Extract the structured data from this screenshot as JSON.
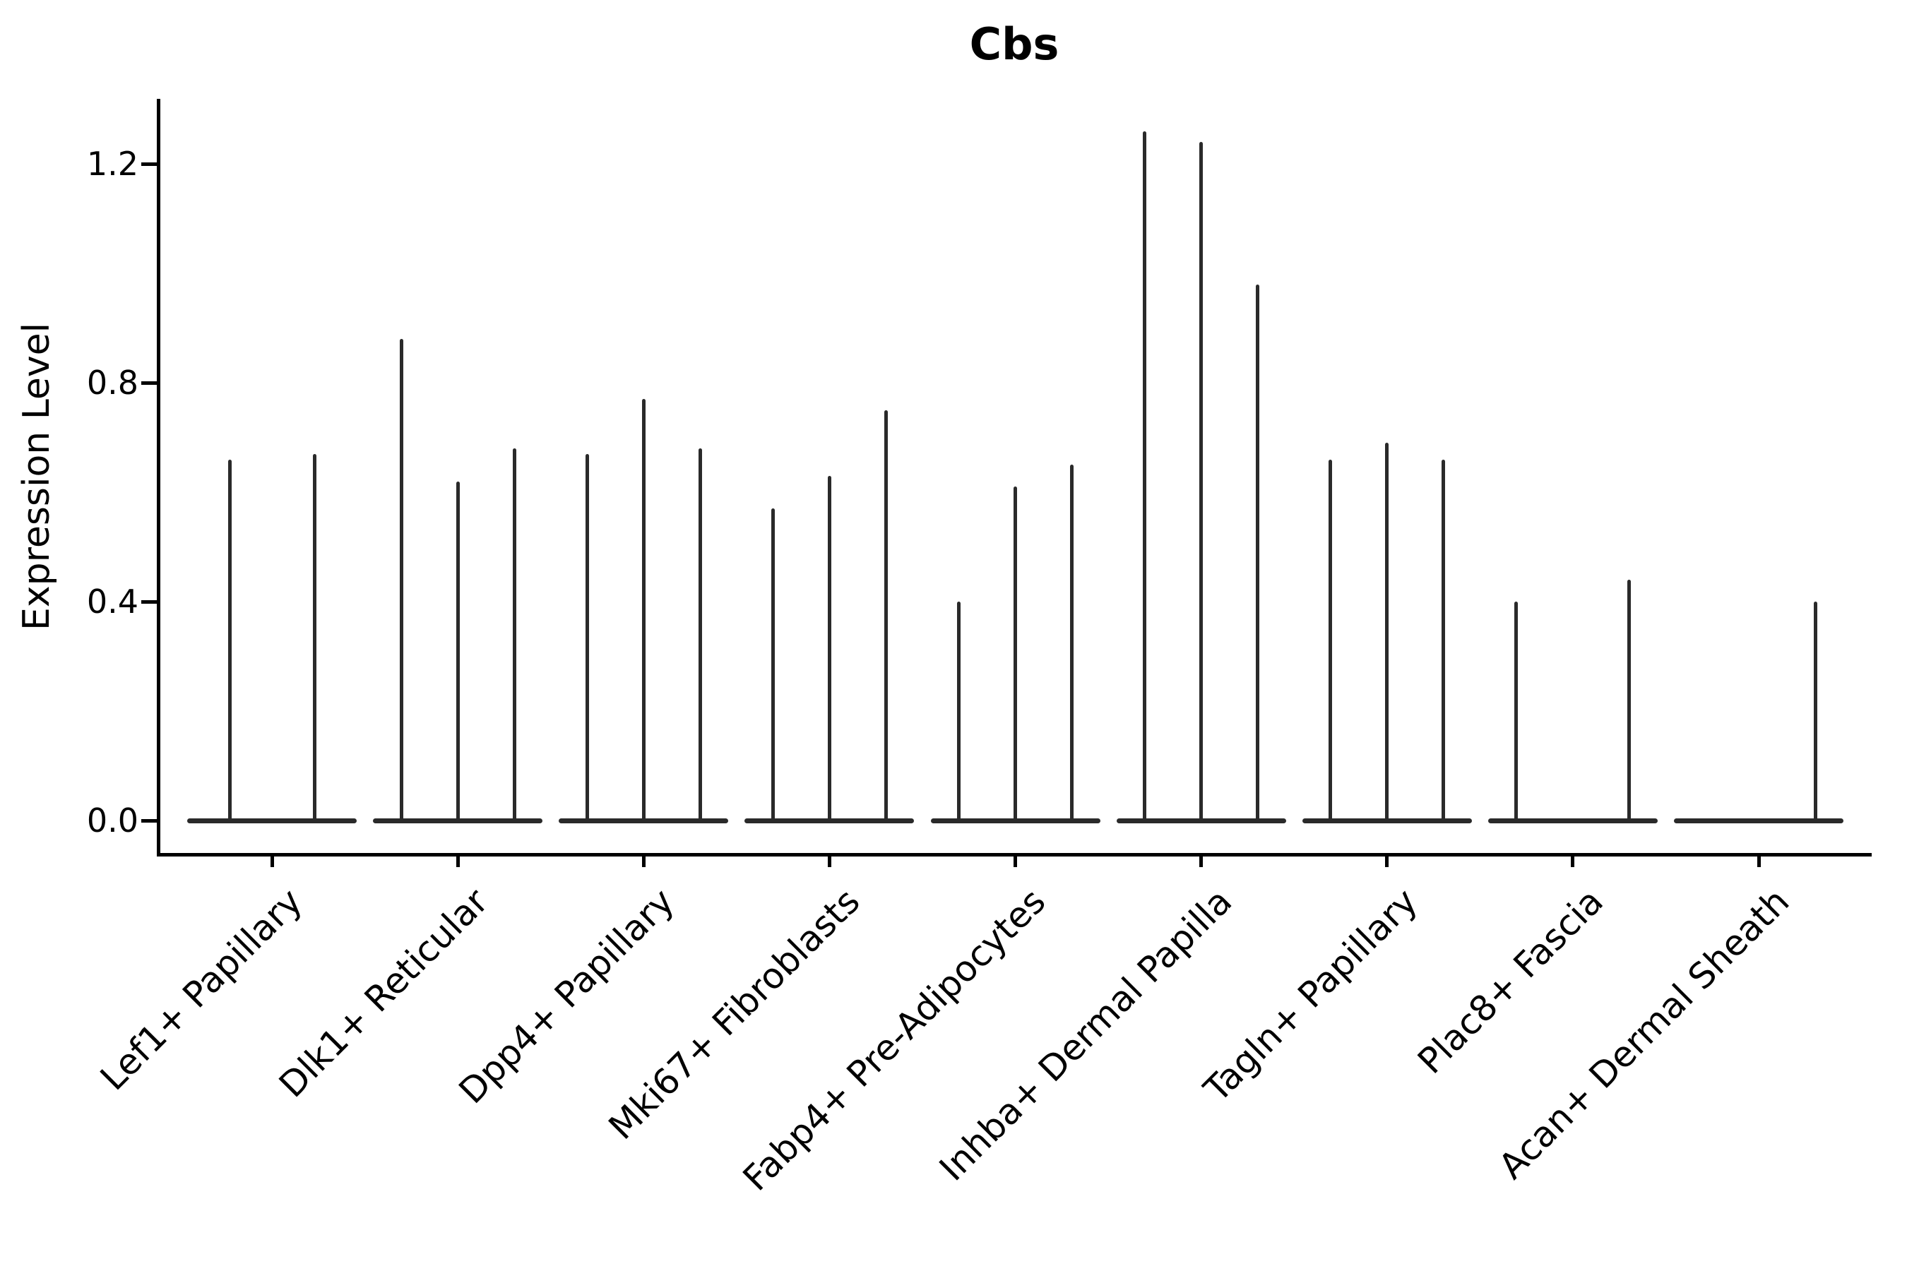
{
  "figure": {
    "title": "Cbs",
    "y_axis": {
      "label": "Expression Level",
      "tick_labels": [
        "0.0",
        "0.4",
        "0.8",
        "1.2"
      ]
    },
    "x_axis": {
      "tick_label_rotation_deg": 45
    }
  },
  "chart_data": {
    "type": "violin",
    "title": "Cbs",
    "xlabel": "",
    "ylabel": "Expression Level",
    "ylim": [
      0,
      1.32
    ],
    "yticks": [
      0.0,
      0.4,
      0.8,
      1.2
    ],
    "grid": false,
    "legend": "none",
    "categories": [
      "Lef1+ Papillary",
      "Dlk1+ Reticular",
      "Dpp4+ Papillary",
      "Mki67+ Fibroblasts",
      "Fabp4+ Pre-Adipocytes",
      "Inhba+ Dermal Papilla",
      "Tagln+ Papillary",
      "Plac8+ Fascia",
      "Acan+ Dermal Sheath"
    ],
    "series": [
      {
        "category": "Lef1+ Papillary",
        "n_violins": 2,
        "peak_values": [
          0.66,
          0.67
        ]
      },
      {
        "category": "Dlk1+ Reticular",
        "n_violins": 3,
        "peak_values": [
          0.88,
          0.62,
          0.68
        ]
      },
      {
        "category": "Dpp4+ Papillary",
        "n_violins": 3,
        "peak_values": [
          0.67,
          0.77,
          0.68
        ]
      },
      {
        "category": "Mki67+ Fibroblasts",
        "n_violins": 3,
        "peak_values": [
          0.57,
          0.63,
          0.75
        ]
      },
      {
        "category": "Fabp4+ Pre-Adipocytes",
        "n_violins": 3,
        "peak_values": [
          0.4,
          0.61,
          0.65
        ]
      },
      {
        "category": "Inhba+ Dermal Papilla",
        "n_violins": 3,
        "peak_values": [
          1.26,
          1.24,
          0.98
        ]
      },
      {
        "category": "Tagln+ Papillary",
        "n_violins": 3,
        "peak_values": [
          0.66,
          0.69,
          0.66
        ]
      },
      {
        "category": "Plac8+ Fascia",
        "n_violins": 3,
        "peak_values": [
          0.4,
          0,
          0.44
        ]
      },
      {
        "category": "Acan+ Dermal Sheath",
        "n_violins": 3,
        "peak_values": [
          0,
          0,
          0.4
        ]
      }
    ],
    "style": {
      "violin_color": "#2a2a2a",
      "axis_color": "#000000",
      "background": "#ffffff"
    }
  }
}
